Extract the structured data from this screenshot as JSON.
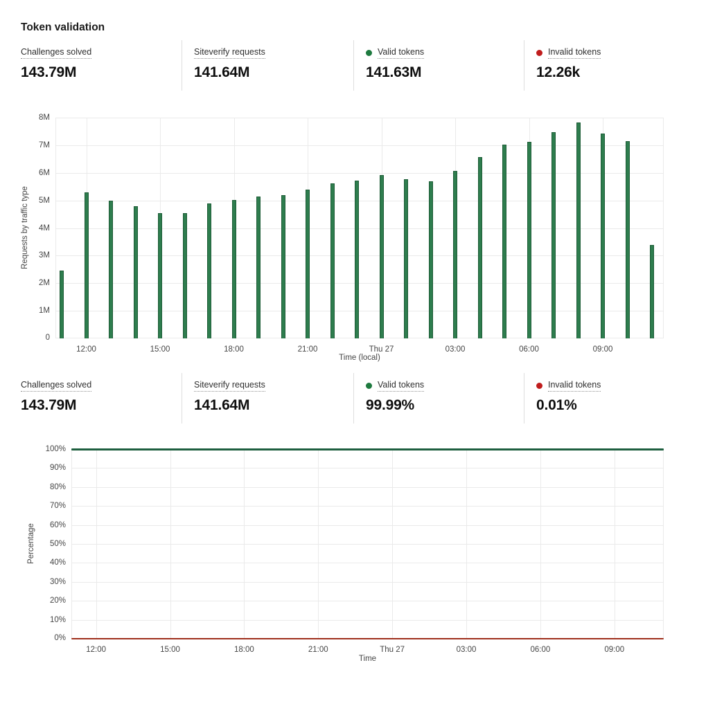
{
  "title": "Token validation",
  "colors": {
    "accent_green": "#1e7a3f",
    "accent_red": "#c01d1d",
    "bar_fill": "#2e7d4e",
    "bar_border": "#1d5c36",
    "line_valid": "#1e5f3f",
    "line_invalid": "#9e2e1b",
    "grid": "#eaeaea"
  },
  "stats_top": {
    "items": [
      {
        "label": "Challenges solved",
        "value": "143.79M",
        "dot": null
      },
      {
        "label": "Siteverify requests",
        "value": "141.64M",
        "dot": null
      },
      {
        "label": "Valid tokens",
        "value": "141.63M",
        "dot": "#1e7a3f"
      },
      {
        "label": "Invalid tokens",
        "value": "12.26k",
        "dot": "#c01d1d"
      }
    ]
  },
  "stats_bottom": {
    "items": [
      {
        "label": "Challenges solved",
        "value": "143.79M",
        "dot": null
      },
      {
        "label": "Siteverify requests",
        "value": "141.64M",
        "dot": null
      },
      {
        "label": "Valid tokens",
        "value": "99.99%",
        "dot": "#1e7a3f"
      },
      {
        "label": "Invalid tokens",
        "value": "0.01%",
        "dot": "#c01d1d"
      }
    ]
  },
  "chart_data": [
    {
      "type": "bar",
      "title": "",
      "ylabel": "Requests by traffic type",
      "xlabel": "Time (local)",
      "ylim_m": [
        0,
        8
      ],
      "grid": true,
      "legend_position": "none",
      "bar_color": "#2e7d4e",
      "bar_border": "#1d5c36",
      "categories": [
        "11:00",
        "12:00",
        "13:00",
        "14:00",
        "15:00",
        "16:00",
        "17:00",
        "18:00",
        "19:00",
        "20:00",
        "21:00",
        "22:00",
        "23:00",
        "Thu 27",
        "01:00",
        "02:00",
        "03:00",
        "04:00",
        "05:00",
        "06:00",
        "07:00",
        "08:00",
        "09:00",
        "10:00",
        "11:00"
      ],
      "values_m": [
        2.45,
        5.3,
        4.98,
        4.78,
        4.55,
        4.54,
        4.88,
        5.01,
        5.14,
        5.19,
        5.4,
        5.63,
        5.72,
        5.91,
        5.76,
        5.7,
        6.08,
        6.58,
        7.02,
        7.12,
        7.48,
        7.83,
        7.43,
        7.15,
        3.38
      ],
      "yticks": [
        {
          "label": "0",
          "m": 0
        },
        {
          "label": "1M",
          "m": 1
        },
        {
          "label": "2M",
          "m": 2
        },
        {
          "label": "3M",
          "m": 3
        },
        {
          "label": "4M",
          "m": 4
        },
        {
          "label": "5M",
          "m": 5
        },
        {
          "label": "6M",
          "m": 6
        },
        {
          "label": "7M",
          "m": 7
        },
        {
          "label": "8M",
          "m": 8
        }
      ],
      "xticks": [
        {
          "i": 1,
          "label": "12:00"
        },
        {
          "i": 4,
          "label": "15:00"
        },
        {
          "i": 7,
          "label": "18:00"
        },
        {
          "i": 10,
          "label": "21:00"
        },
        {
          "i": 13,
          "label": "Thu 27"
        },
        {
          "i": 16,
          "label": "03:00"
        },
        {
          "i": 19,
          "label": "06:00"
        },
        {
          "i": 22,
          "label": "09:00"
        }
      ]
    },
    {
      "type": "line",
      "title": "",
      "ylabel": "Percentage",
      "xlabel": "Time",
      "ylim": [
        0,
        100
      ],
      "grid": true,
      "legend_position": "none",
      "categories": [
        "11:00",
        "12:00",
        "13:00",
        "14:00",
        "15:00",
        "16:00",
        "17:00",
        "18:00",
        "19:00",
        "20:00",
        "21:00",
        "22:00",
        "23:00",
        "Thu 27",
        "01:00",
        "02:00",
        "03:00",
        "04:00",
        "05:00",
        "06:00",
        "07:00",
        "08:00",
        "09:00",
        "10:00",
        "11:00"
      ],
      "series": [
        {
          "name": "Valid tokens",
          "color": "#1e5f3f",
          "values": [
            100,
            100,
            100,
            100,
            100,
            100,
            100,
            100,
            100,
            100,
            100,
            100,
            100,
            100,
            100,
            100,
            100,
            100,
            100,
            100,
            100,
            100,
            100,
            100,
            100
          ]
        },
        {
          "name": "Invalid tokens",
          "color": "#9e2e1b",
          "values": [
            0,
            0,
            0,
            0,
            0,
            0,
            0,
            0,
            0,
            0,
            0,
            0,
            0,
            0,
            0,
            0,
            0,
            0,
            0,
            0,
            0,
            0,
            0,
            0,
            0
          ]
        }
      ],
      "yticks": [
        {
          "label": "0%",
          "pct": 0
        },
        {
          "label": "10%",
          "pct": 10
        },
        {
          "label": "20%",
          "pct": 20
        },
        {
          "label": "30%",
          "pct": 30
        },
        {
          "label": "40%",
          "pct": 40
        },
        {
          "label": "50%",
          "pct": 50
        },
        {
          "label": "60%",
          "pct": 60
        },
        {
          "label": "70%",
          "pct": 70
        },
        {
          "label": "80%",
          "pct": 80
        },
        {
          "label": "90%",
          "pct": 90
        },
        {
          "label": "100%",
          "pct": 100
        }
      ],
      "xticks": [
        {
          "i": 1,
          "label": "12:00"
        },
        {
          "i": 4,
          "label": "15:00"
        },
        {
          "i": 7,
          "label": "18:00"
        },
        {
          "i": 10,
          "label": "21:00"
        },
        {
          "i": 13,
          "label": "Thu 27"
        },
        {
          "i": 16,
          "label": "03:00"
        },
        {
          "i": 19,
          "label": "06:00"
        },
        {
          "i": 22,
          "label": "09:00"
        }
      ]
    }
  ]
}
